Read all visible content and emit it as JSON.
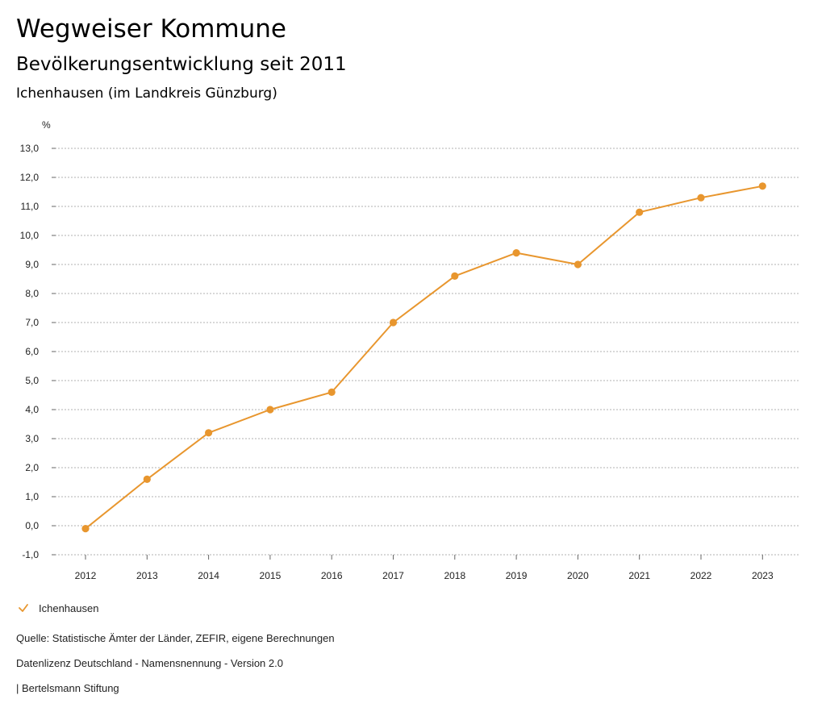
{
  "header": {
    "title": "Wegweiser Kommune",
    "subtitle": "Bevölkerungsentwicklung seit 2011",
    "region": "Ichenhausen (im Landkreis Günzburg)"
  },
  "chart_data": {
    "type": "line",
    "title": "Bevölkerungsentwicklung seit 2011",
    "ylabel": "%",
    "xlabel": "",
    "categories": [
      "2012",
      "2013",
      "2014",
      "2015",
      "2016",
      "2017",
      "2018",
      "2019",
      "2020",
      "2021",
      "2022",
      "2023"
    ],
    "series": [
      {
        "name": "Ichenhausen",
        "color": "#e8962e",
        "values": [
          -0.1,
          1.6,
          3.2,
          4.0,
          4.6,
          7.0,
          8.6,
          9.4,
          9.0,
          10.8,
          11.3,
          11.7
        ]
      }
    ],
    "ylim": [
      -1,
      13
    ],
    "yticks": [
      "-1,0",
      "0,0",
      "1,0",
      "2,0",
      "3,0",
      "4,0",
      "5,0",
      "6,0",
      "7,0",
      "8,0",
      "9,0",
      "10,0",
      "11,0",
      "12,0",
      "13,0"
    ],
    "grid": true,
    "legend": "bottom-left"
  },
  "legend": {
    "label": "Ichenhausen",
    "icon": "check-icon"
  },
  "footer": {
    "source": "Quelle: Statistische Ämter der Länder, ZEFIR, eigene Berechnungen",
    "license": "Datenlizenz Deutschland - Namensnennung - Version 2.0",
    "publisher": "| Bertelsmann Stiftung"
  }
}
